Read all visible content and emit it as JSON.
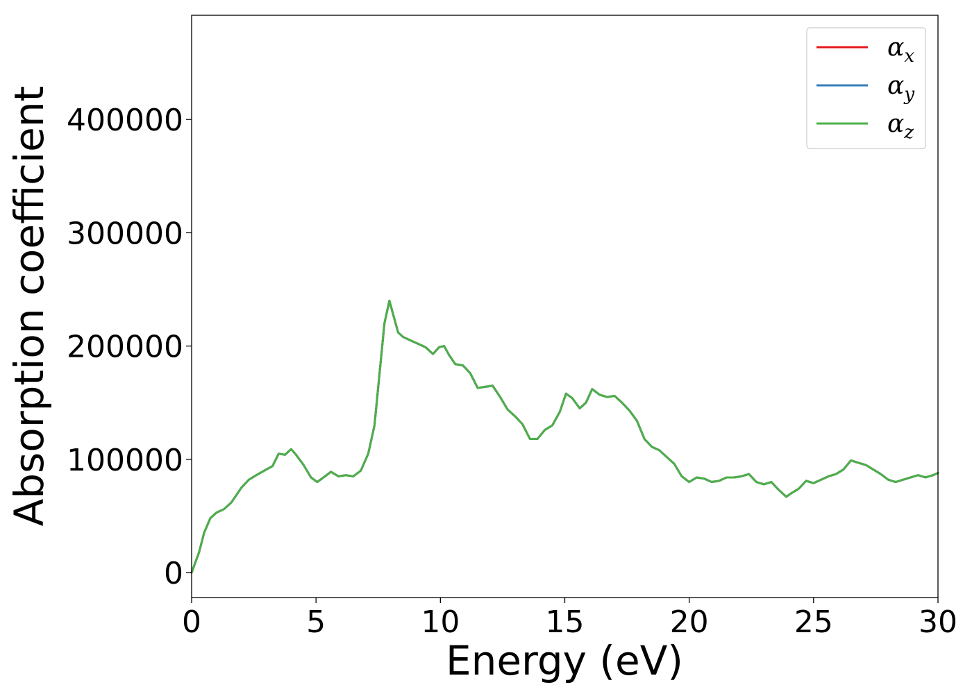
{
  "chart_data": {
    "type": "line",
    "title": "",
    "xlabel": "Energy (eV)",
    "ylabel": "Absorption coefficient",
    "xlim": [
      0,
      30
    ],
    "ylim": [
      -22000,
      492000
    ],
    "grid": false,
    "legend_position": "top-right",
    "xticks": [
      0,
      5,
      10,
      15,
      20,
      25,
      30
    ],
    "yticks": [
      0,
      100000,
      200000,
      300000,
      400000
    ],
    "x": [
      0,
      0.3,
      0.5,
      0.75,
      1.0,
      1.3,
      1.6,
      2.0,
      2.3,
      2.6,
      3.0,
      3.25,
      3.5,
      3.75,
      4.0,
      4.2,
      4.5,
      4.8,
      5.05,
      5.3,
      5.6,
      5.9,
      6.2,
      6.5,
      6.8,
      7.1,
      7.35,
      7.55,
      7.75,
      7.95,
      8.1,
      8.3,
      8.5,
      8.8,
      9.1,
      9.4,
      9.7,
      9.95,
      10.15,
      10.35,
      10.6,
      10.9,
      11.2,
      11.5,
      11.8,
      12.1,
      12.4,
      12.7,
      13.0,
      13.3,
      13.6,
      13.9,
      14.2,
      14.5,
      14.8,
      15.05,
      15.3,
      15.6,
      15.85,
      16.1,
      16.4,
      16.7,
      17.0,
      17.3,
      17.6,
      17.9,
      18.2,
      18.5,
      18.8,
      19.1,
      19.4,
      19.7,
      20.0,
      20.3,
      20.6,
      20.9,
      21.2,
      21.5,
      21.8,
      22.1,
      22.4,
      22.7,
      23.0,
      23.3,
      23.6,
      23.9,
      24.1,
      24.4,
      24.7,
      25.0,
      25.3,
      25.6,
      25.9,
      26.2,
      26.5,
      26.8,
      27.1,
      27.4,
      27.7,
      28.0,
      28.3,
      28.6,
      28.9,
      29.2,
      29.5,
      29.8,
      30.0
    ],
    "series": [
      {
        "name": "α_x",
        "color": "#e41a1c",
        "values": [
          0,
          18000,
          35000,
          48000,
          53000,
          56000,
          62000,
          75000,
          82000,
          86000,
          91000,
          94000,
          105000,
          104000,
          109000,
          104000,
          95000,
          84000,
          80000,
          84000,
          89000,
          85000,
          86000,
          85000,
          90000,
          105000,
          130000,
          175000,
          220000,
          240000,
          228000,
          212000,
          208000,
          205000,
          202000,
          199000,
          193000,
          199000,
          200000,
          192000,
          184000,
          183000,
          176000,
          163000,
          164000,
          165000,
          155000,
          144000,
          138000,
          131000,
          118000,
          118000,
          126000,
          130000,
          142000,
          158000,
          154000,
          145000,
          150000,
          162000,
          157000,
          155000,
          156000,
          150000,
          143000,
          134000,
          118000,
          111000,
          108000,
          102000,
          96000,
          85000,
          80000,
          84000,
          83000,
          80000,
          81000,
          84000,
          84000,
          85000,
          87000,
          80000,
          78000,
          80000,
          73000,
          67000,
          70000,
          74000,
          81000,
          79000,
          82000,
          85000,
          87000,
          91000,
          99000,
          97000,
          95000,
          91000,
          87000,
          82000,
          80000,
          82000,
          84000,
          86000,
          84000,
          86000,
          88000
        ]
      },
      {
        "name": "α_y",
        "color": "#377eb8",
        "values": [
          0,
          18000,
          35000,
          48000,
          53000,
          56000,
          62000,
          75000,
          82000,
          86000,
          91000,
          94000,
          105000,
          104000,
          109000,
          104000,
          95000,
          84000,
          80000,
          84000,
          89000,
          85000,
          86000,
          85000,
          90000,
          105000,
          130000,
          175000,
          220000,
          240000,
          228000,
          212000,
          208000,
          205000,
          202000,
          199000,
          193000,
          199000,
          200000,
          192000,
          184000,
          183000,
          176000,
          163000,
          164000,
          165000,
          155000,
          144000,
          138000,
          131000,
          118000,
          118000,
          126000,
          130000,
          142000,
          158000,
          154000,
          145000,
          150000,
          162000,
          157000,
          155000,
          156000,
          150000,
          143000,
          134000,
          118000,
          111000,
          108000,
          102000,
          96000,
          85000,
          80000,
          84000,
          83000,
          80000,
          81000,
          84000,
          84000,
          85000,
          87000,
          80000,
          78000,
          80000,
          73000,
          67000,
          70000,
          74000,
          81000,
          79000,
          82000,
          85000,
          87000,
          91000,
          99000,
          97000,
          95000,
          91000,
          87000,
          82000,
          80000,
          82000,
          84000,
          86000,
          84000,
          86000,
          88000
        ]
      },
      {
        "name": "α_z",
        "color": "#4daf4a",
        "values": [
          0,
          18000,
          35000,
          48000,
          53000,
          56000,
          62000,
          75000,
          82000,
          86000,
          91000,
          94000,
          105000,
          104000,
          109000,
          104000,
          95000,
          84000,
          80000,
          84000,
          89000,
          85000,
          86000,
          85000,
          90000,
          105000,
          130000,
          175000,
          220000,
          240000,
          228000,
          212000,
          208000,
          205000,
          202000,
          199000,
          193000,
          199000,
          200000,
          192000,
          184000,
          183000,
          176000,
          163000,
          164000,
          165000,
          155000,
          144000,
          138000,
          131000,
          118000,
          118000,
          126000,
          130000,
          142000,
          158000,
          154000,
          145000,
          150000,
          162000,
          157000,
          155000,
          156000,
          150000,
          143000,
          134000,
          118000,
          111000,
          108000,
          102000,
          96000,
          85000,
          80000,
          84000,
          83000,
          80000,
          81000,
          84000,
          84000,
          85000,
          87000,
          80000,
          78000,
          80000,
          73000,
          67000,
          70000,
          74000,
          81000,
          79000,
          82000,
          85000,
          87000,
          91000,
          99000,
          97000,
          95000,
          91000,
          87000,
          82000,
          80000,
          82000,
          84000,
          86000,
          84000,
          86000,
          88000
        ]
      }
    ],
    "legend": [
      {
        "symbol": "α",
        "subscript": "x",
        "color": "#e41a1c"
      },
      {
        "symbol": "α",
        "subscript": "y",
        "color": "#377eb8"
      },
      {
        "symbol": "α",
        "subscript": "z",
        "color": "#4daf4a"
      }
    ]
  }
}
